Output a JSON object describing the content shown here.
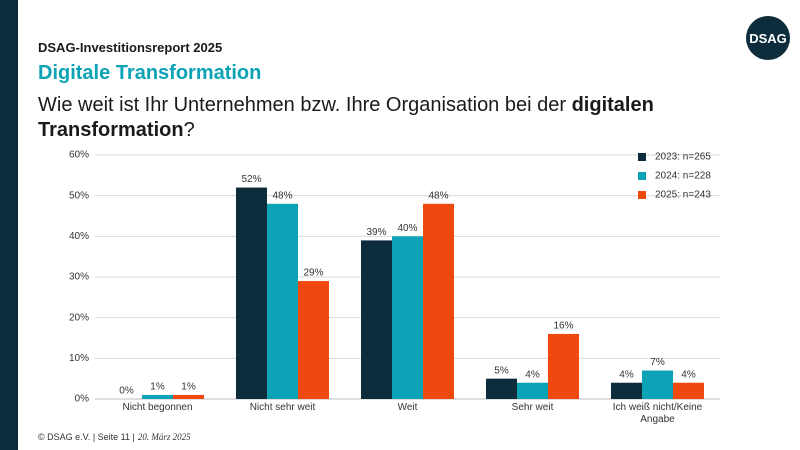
{
  "slide": {
    "report": "DSAG-Investitionsreport 2025",
    "section": "Digitale Transformation",
    "question": {
      "start": "Wie weit ist Ihr Unternehmen bzw. Ihre Organisation bei der ",
      "bold1": "digitalen",
      "bold2": "Transformation",
      "end": "?"
    },
    "footer": "© DSAG e.V. | Seite 11 |",
    "date": "20. März 2025",
    "logo": "DSAG"
  },
  "chart_data": {
    "type": "bar",
    "categories": [
      "Nicht begonnen",
      "Nicht sehr weit",
      "Weit",
      "Sehr weit",
      "Ich weiß nicht/Keine Angabe"
    ],
    "series": [
      {
        "name": "2023: n=265",
        "color": "#0e2d3c",
        "values": [
          0,
          52,
          39,
          5,
          4
        ],
        "value_labels": [
          "0%",
          "52%",
          "39%",
          "5%",
          "4%"
        ]
      },
      {
        "name": "2024: n=228",
        "color": "#0ba3b5",
        "values": [
          1,
          48,
          40,
          4,
          7
        ],
        "value_labels": [
          "1%",
          "48%",
          "40%",
          "4%",
          "7%"
        ]
      },
      {
        "name": "2025: n=243",
        "color": "#f0490f",
        "values": [
          1,
          29,
          48,
          16,
          4
        ],
        "value_labels": [
          "1%",
          "29%",
          "48%",
          "16%",
          "4%"
        ]
      }
    ],
    "ylim": [
      0,
      60
    ],
    "yticks": [
      {
        "value": 0,
        "label": "0%"
      },
      {
        "value": 10,
        "label": "10%"
      },
      {
        "value": 20,
        "label": "20%"
      },
      {
        "value": 30,
        "label": "30%"
      },
      {
        "value": 40,
        "label": "40%"
      },
      {
        "value": 50,
        "label": "50%"
      },
      {
        "value": 60,
        "label": "60%"
      }
    ],
    "grid": true,
    "legend": "top-right"
  }
}
